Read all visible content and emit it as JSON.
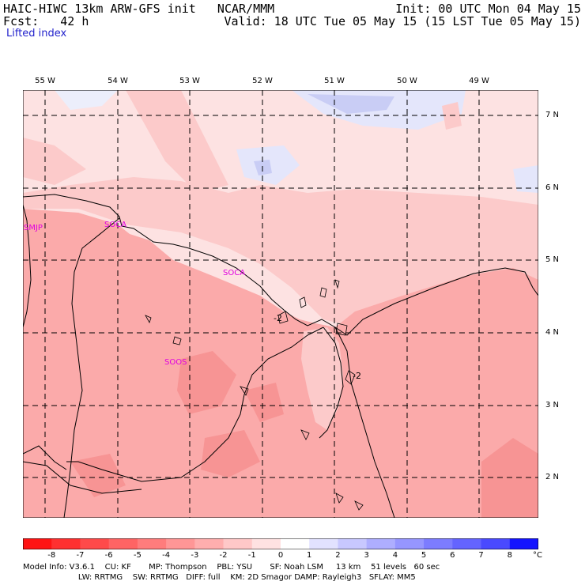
{
  "header": {
    "line1_left": "HAIC-HIWC 13km ARW-GFS init   NCAR/MMM",
    "line1_right": "Init: 00 UTC Mon 04 May 15",
    "line2_left": "Fcst:   42 h",
    "line2_right": "Valid: 18 UTC Tue 05 May 15 (15 LST Tue 05 May 15)",
    "field": "Lifted index"
  },
  "lon_labels": [
    "55 W",
    "54 W",
    "53 W",
    "52 W",
    "51 W",
    "50 W",
    "49 W"
  ],
  "lat_labels": [
    "7 N",
    "6 N",
    "5 N",
    "4 N",
    "3 N",
    "2 N"
  ],
  "stations": [
    "SMJP",
    "SOCA",
    "SOOS",
    "SOCA"
  ],
  "contour_labels": [
    "-2",
    "-2"
  ],
  "colorbar": {
    "ticks": [
      "-8",
      "-7",
      "-6",
      "-5",
      "-4",
      "-3",
      "-2",
      "-1",
      "0",
      "1",
      "2",
      "3",
      "4",
      "5",
      "6",
      "7",
      "8"
    ],
    "unit": "°C",
    "colors": [
      "#ff1414",
      "#ff3030",
      "#ff4a4a",
      "#ff6464",
      "#ff7c7c",
      "#ff9696",
      "#ffaeae",
      "#ffc8c8",
      "#ffe2e2",
      "#ffffff",
      "#e2e2ff",
      "#c8c8ff",
      "#aeaeff",
      "#9696ff",
      "#7c7cff",
      "#6464ff",
      "#4a4aff",
      "#1414ff"
    ]
  },
  "footer": {
    "line1": "Model Info: V3.6.1    CU: KF       MP: Thompson    PBL: YSU       SF: Noah LSM     13 km    51 levels   60 sec",
    "line2": "                      LW: RRTMG    SW: RRTMG   DIFF: full    KM: 2D Smagor DAMP: Rayleigh3   SFLAY: MM5"
  },
  "map_colors": {
    "ocean_light": "#fde2e2",
    "ocean_mid": "#fccaca",
    "land": "#fbaaaa",
    "land_dark": "#f79494",
    "blue_light": "#e4e6fb",
    "blue_mid": "#c9cdf5"
  }
}
